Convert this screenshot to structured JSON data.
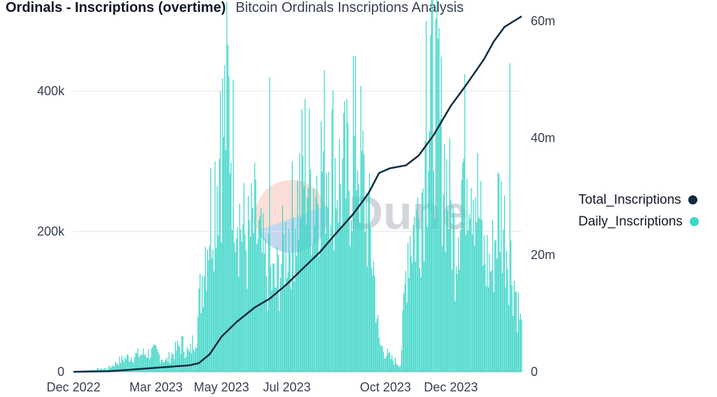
{
  "header": {
    "title": "Ordinals - Inscriptions (overtime)",
    "subtitle": "Bitcoin Ordinals Inscriptions Analysis"
  },
  "watermark": {
    "text": "Dune"
  },
  "legend": {
    "items": [
      {
        "label": "Total_Inscriptions",
        "color": "#0f2a3f"
      },
      {
        "label": "Daily_Inscriptions",
        "color": "#3fd6c8"
      }
    ]
  },
  "chart_data": {
    "type": "bar",
    "title": "Ordinals - Inscriptions (overtime)",
    "subtitle": "Bitcoin Ordinals Inscriptions Analysis",
    "x_tick_labels": [
      "Dec 2022",
      "Mar 2023",
      "May 2023",
      "Jul 2023",
      "Oct 2023",
      "Dec 2023"
    ],
    "x_tick_dates": [
      "2022-12-14",
      "2023-03-01",
      "2023-05-01",
      "2023-07-01",
      "2023-10-01",
      "2023-12-01"
    ],
    "x_range": [
      "2022-12-14",
      "2024-02-05"
    ],
    "y_left": {
      "ticks": [
        "0",
        "200k",
        "400k"
      ],
      "tick_values": [
        0,
        200000,
        400000
      ],
      "range": [
        0,
        500000
      ]
    },
    "y_right": {
      "ticks": [
        "0",
        "20m",
        "40m",
        "60m"
      ],
      "tick_values": [
        0,
        20000000,
        40000000,
        60000000
      ],
      "range": [
        0,
        60000000
      ]
    },
    "grid": true,
    "legend_position": "right",
    "series": [
      {
        "name": "Daily_Inscriptions",
        "type": "bar",
        "color": "#3fd6c8",
        "points": [
          [
            "2022-12-14",
            0
          ],
          [
            "2023-01-15",
            5000
          ],
          [
            "2023-01-25",
            15000
          ],
          [
            "2023-02-01",
            20000
          ],
          [
            "2023-02-15",
            25000
          ],
          [
            "2023-03-01",
            28000
          ],
          [
            "2023-03-10",
            15000
          ],
          [
            "2023-03-25",
            40000
          ],
          [
            "2023-04-01",
            25000
          ],
          [
            "2023-04-08",
            60000
          ],
          [
            "2023-04-15",
            170000
          ],
          [
            "2023-04-22",
            240000
          ],
          [
            "2023-05-01",
            330000
          ],
          [
            "2023-05-07",
            390000
          ],
          [
            "2023-05-12",
            310000
          ],
          [
            "2023-05-18",
            220000
          ],
          [
            "2023-05-25",
            180000
          ],
          [
            "2023-06-01",
            210000
          ],
          [
            "2023-06-10",
            150000
          ],
          [
            "2023-06-20",
            120000
          ],
          [
            "2023-07-01",
            190000
          ],
          [
            "2023-07-10",
            230000
          ],
          [
            "2023-07-18",
            300000
          ],
          [
            "2023-07-25",
            260000
          ],
          [
            "2023-08-01",
            290000
          ],
          [
            "2023-08-10",
            320000
          ],
          [
            "2023-08-20",
            270000
          ],
          [
            "2023-08-28",
            280000
          ],
          [
            "2023-09-05",
            330000
          ],
          [
            "2023-09-12",
            250000
          ],
          [
            "2023-09-20",
            150000
          ],
          [
            "2023-09-25",
            40000
          ],
          [
            "2023-10-05",
            20000
          ],
          [
            "2023-10-15",
            10000
          ],
          [
            "2023-10-22",
            190000
          ],
          [
            "2023-11-01",
            220000
          ],
          [
            "2023-11-08",
            310000
          ],
          [
            "2023-11-14",
            420000
          ],
          [
            "2023-11-20",
            350000
          ],
          [
            "2023-11-28",
            260000
          ],
          [
            "2023-12-05",
            180000
          ],
          [
            "2023-12-12",
            290000
          ],
          [
            "2023-12-18",
            330000
          ],
          [
            "2023-12-24",
            270000
          ],
          [
            "2024-01-01",
            160000
          ],
          [
            "2024-01-08",
            150000
          ],
          [
            "2024-01-15",
            240000
          ],
          [
            "2024-01-22",
            190000
          ],
          [
            "2024-01-29",
            130000
          ],
          [
            "2024-02-05",
            60000
          ]
        ],
        "spikes": [
          [
            "2023-04-30",
            400000
          ],
          [
            "2023-06-15",
            420000
          ],
          [
            "2023-08-05",
            430000
          ],
          [
            "2023-09-01",
            450000
          ],
          [
            "2023-11-08",
            500000
          ],
          [
            "2023-11-12",
            480000
          ],
          [
            "2023-11-20",
            490000
          ],
          [
            "2024-01-25",
            440000
          ]
        ]
      },
      {
        "name": "Total_Inscriptions",
        "type": "line",
        "color": "#0f2a3f",
        "points": [
          [
            "2022-12-14",
            0
          ],
          [
            "2023-01-15",
            100000
          ],
          [
            "2023-02-01",
            300000
          ],
          [
            "2023-03-01",
            700000
          ],
          [
            "2023-04-01",
            1100000
          ],
          [
            "2023-04-10",
            1500000
          ],
          [
            "2023-04-20",
            3000000
          ],
          [
            "2023-05-01",
            6000000
          ],
          [
            "2023-05-15",
            8500000
          ],
          [
            "2023-06-01",
            11000000
          ],
          [
            "2023-06-15",
            12500000
          ],
          [
            "2023-07-01",
            15000000
          ],
          [
            "2023-07-15",
            17500000
          ],
          [
            "2023-08-01",
            20500000
          ],
          [
            "2023-08-15",
            23500000
          ],
          [
            "2023-09-01",
            27000000
          ],
          [
            "2023-09-15",
            30500000
          ],
          [
            "2023-09-25",
            34000000
          ],
          [
            "2023-10-05",
            34800000
          ],
          [
            "2023-10-20",
            35300000
          ],
          [
            "2023-11-01",
            37000000
          ],
          [
            "2023-11-15",
            40500000
          ],
          [
            "2023-12-01",
            45500000
          ],
          [
            "2023-12-15",
            49000000
          ],
          [
            "2024-01-01",
            53500000
          ],
          [
            "2024-01-10",
            56500000
          ],
          [
            "2024-01-20",
            59000000
          ],
          [
            "2024-02-05",
            60800000
          ]
        ]
      }
    ]
  }
}
